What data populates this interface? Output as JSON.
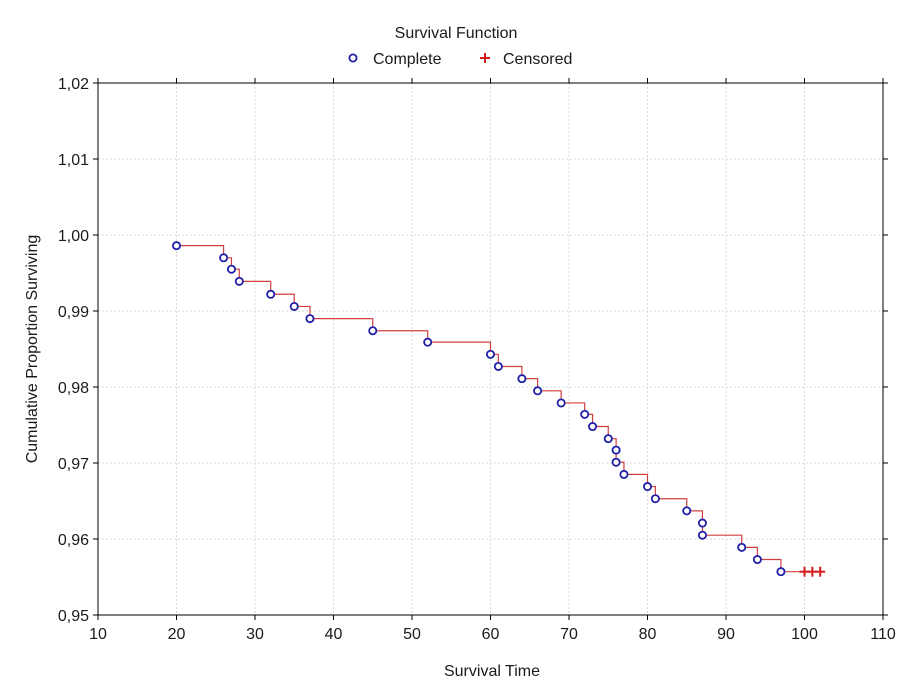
{
  "chart_data": {
    "type": "line",
    "title": "Survival Function",
    "xlabel": "Survival Time",
    "ylabel": "Cumulative Proportion Surviving",
    "xlim": [
      10,
      110
    ],
    "ylim": [
      0.95,
      1.02
    ],
    "x_ticks": [
      10,
      20,
      30,
      40,
      50,
      60,
      70,
      80,
      90,
      100,
      110
    ],
    "x_tick_labels": [
      "10",
      "20",
      "30",
      "40",
      "50",
      "60",
      "70",
      "80",
      "90",
      "100",
      "110"
    ],
    "y_ticks": [
      0.95,
      0.96,
      0.97,
      0.98,
      0.99,
      1.0,
      1.01,
      1.02
    ],
    "y_tick_labels": [
      "0,95",
      "0,96",
      "0,97",
      "0,98",
      "0,99",
      "1,00",
      "1,01",
      "1,02"
    ],
    "grid": true,
    "legend_position": "top-center",
    "legend": [
      {
        "label": "Complete",
        "marker": "circle",
        "color": "#1f1fa8"
      },
      {
        "label": "Censored",
        "marker": "plus",
        "color": "#d11a1a"
      }
    ],
    "line_color": "#d04040",
    "series": [
      {
        "name": "Complete",
        "x": [
          20,
          26,
          27,
          28,
          32,
          35,
          37,
          45,
          52,
          60,
          61,
          64,
          66,
          69,
          72,
          73,
          75,
          76,
          76,
          77,
          80,
          81,
          85,
          87,
          87,
          92,
          94,
          97
        ],
        "y": [
          0.9986,
          0.997,
          0.9955,
          0.9939,
          0.9922,
          0.9906,
          0.989,
          0.9874,
          0.9859,
          0.9843,
          0.9827,
          0.9811,
          0.9795,
          0.9779,
          0.9764,
          0.9748,
          0.9732,
          0.9717,
          0.9701,
          0.9685,
          0.9669,
          0.9653,
          0.9637,
          0.9621,
          0.9605,
          0.9589,
          0.9573,
          0.9557
        ]
      },
      {
        "name": "Censored",
        "x": [
          100,
          101,
          102
        ],
        "y": [
          0.9557,
          0.9557,
          0.9557
        ]
      }
    ]
  }
}
